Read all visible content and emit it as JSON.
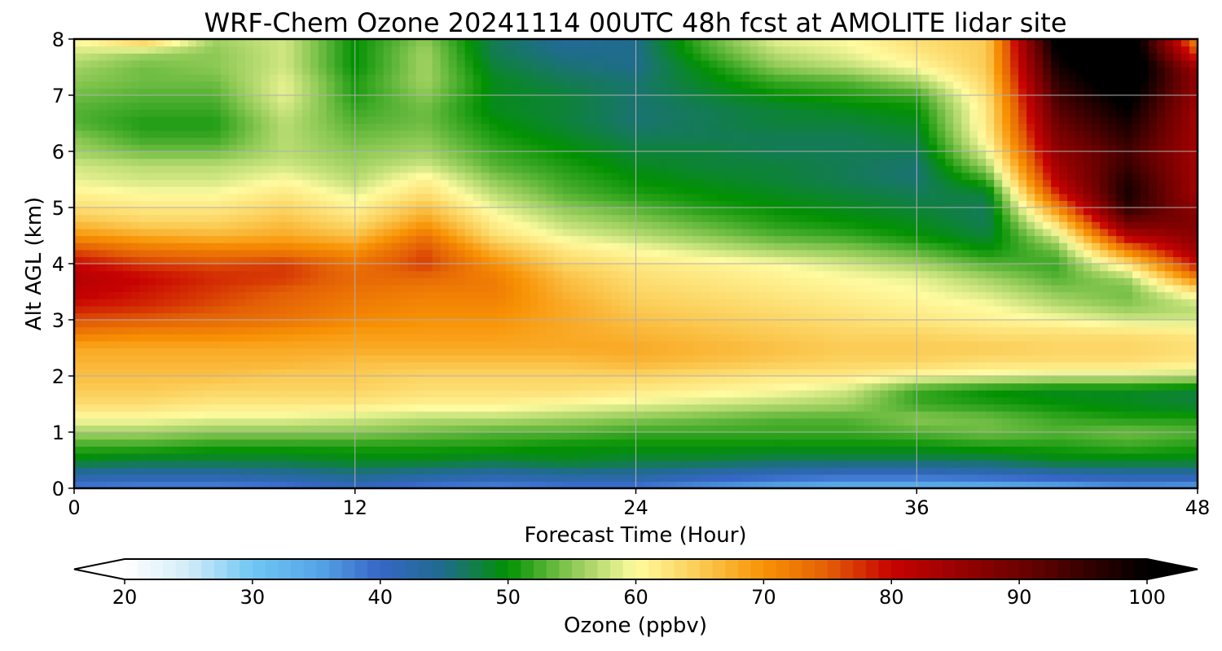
{
  "chart_data": {
    "type": "heatmap",
    "title": "WRF-Chem Ozone  20241114 00UTC 48h fcst at AMOLITE lidar site",
    "xlabel": "Forecast Time (Hour)",
    "ylabel": "Alt AGL (km)",
    "xlim": [
      0,
      48
    ],
    "ylim": [
      0,
      8
    ],
    "xticks": [
      "0",
      "12",
      "24",
      "36",
      "48"
    ],
    "yticks": [
      "0",
      "1",
      "2",
      "3",
      "4",
      "5",
      "6",
      "7",
      "8"
    ],
    "grid": true,
    "x": [
      0,
      3,
      6,
      9,
      12,
      15,
      18,
      21,
      24,
      27,
      30,
      33,
      36,
      39,
      42,
      45,
      48
    ],
    "y": [
      0,
      0.25,
      0.5,
      0.75,
      1,
      1.25,
      1.5,
      1.75,
      2,
      2.25,
      2.5,
      2.75,
      3,
      3.25,
      3.5,
      3.75,
      4,
      4.25,
      4.5,
      4.75,
      5,
      5.25,
      5.5,
      5.75,
      6,
      6.25,
      6.5,
      6.75,
      7,
      7.25,
      7.5,
      7.75,
      8
    ],
    "z": [
      [
        38,
        37,
        37,
        38,
        40,
        38,
        37,
        38,
        38,
        36,
        34,
        33,
        33,
        33,
        34,
        36,
        35
      ],
      [
        43,
        43,
        43,
        44,
        45,
        44,
        43,
        44,
        44,
        42,
        41,
        40,
        40,
        41,
        42,
        43,
        43
      ],
      [
        49,
        48,
        48,
        48,
        49,
        49,
        48,
        49,
        48,
        48,
        47,
        47,
        47,
        47,
        49,
        49,
        49
      ],
      [
        52,
        52,
        51,
        51,
        51,
        51,
        51,
        50,
        50,
        50,
        50,
        50,
        50,
        51,
        51,
        52,
        51
      ],
      [
        56,
        56,
        55,
        55,
        55,
        54,
        53,
        53,
        52,
        52,
        52,
        52,
        53,
        54,
        53,
        54,
        53
      ],
      [
        60,
        60,
        59,
        59,
        58,
        57,
        57,
        56,
        55,
        54,
        53,
        53,
        55,
        54,
        52,
        51,
        51
      ],
      [
        63,
        63,
        62,
        62,
        62,
        61,
        61,
        60,
        59,
        58,
        57,
        56,
        52,
        51,
        50,
        49,
        48
      ],
      [
        65,
        65,
        64,
        64,
        64,
        63,
        63,
        63,
        62,
        61,
        60,
        58,
        52,
        50,
        49,
        49,
        48
      ],
      [
        66,
        66,
        66,
        65,
        65,
        64,
        64,
        64,
        64,
        63,
        62,
        62,
        60,
        59,
        58,
        58,
        57
      ],
      [
        67,
        67,
        67,
        67,
        66,
        66,
        66,
        66,
        67,
        66,
        65,
        64,
        64,
        63,
        63,
        63,
        62
      ],
      [
        68,
        68,
        68,
        68,
        68,
        68,
        68,
        68,
        68,
        67,
        66,
        65,
        65,
        65,
        64,
        64,
        63
      ],
      [
        72,
        71,
        71,
        70,
        69,
        69,
        69,
        68,
        67,
        66,
        65,
        64,
        64,
        63,
        63,
        63,
        62
      ],
      [
        76,
        75,
        74,
        73,
        71,
        70,
        70,
        68,
        66,
        65,
        64,
        63,
        62,
        61,
        60,
        58,
        58
      ],
      [
        79,
        78,
        76,
        74,
        72,
        71,
        71,
        68,
        65,
        64,
        63,
        62,
        61,
        60,
        57,
        55,
        57
      ],
      [
        81,
        79,
        77,
        75,
        73,
        72,
        72,
        67,
        64,
        63,
        62,
        61,
        60,
        58,
        55,
        54,
        62
      ],
      [
        82,
        80,
        78,
        77,
        74,
        74,
        72,
        66,
        63,
        62,
        61,
        60,
        59,
        56,
        53,
        56,
        72
      ],
      [
        80,
        77,
        76,
        77,
        73,
        77,
        70,
        64,
        62,
        61,
        60,
        58,
        56,
        53,
        52,
        63,
        80
      ],
      [
        76,
        73,
        72,
        72,
        70,
        76,
        67,
        62,
        60,
        58,
        56,
        55,
        53,
        50,
        54,
        72,
        85
      ],
      [
        70,
        68,
        67,
        68,
        66,
        73,
        63,
        59,
        57,
        55,
        53,
        52,
        50,
        48,
        58,
        82,
        87
      ],
      [
        66,
        64,
        64,
        66,
        63,
        69,
        61,
        57,
        55,
        53,
        51,
        50,
        49,
        47,
        64,
        90,
        88
      ],
      [
        63,
        62,
        62,
        64,
        61,
        66,
        59,
        55,
        53,
        51,
        50,
        49,
        48,
        47,
        71,
        96,
        86
      ],
      [
        61,
        60,
        60,
        62,
        59,
        63,
        57,
        53,
        51,
        50,
        49,
        48,
        47,
        48,
        78,
        98,
        84
      ],
      [
        59,
        58,
        58,
        60,
        57,
        61,
        55,
        52,
        50,
        49,
        48,
        47,
        46,
        52,
        82,
        97,
        84
      ],
      [
        58,
        57,
        57,
        58,
        56,
        58,
        53,
        51,
        49,
        48,
        48,
        47,
        46,
        56,
        84,
        95,
        84
      ],
      [
        56,
        54,
        54,
        57,
        55,
        56,
        52,
        50,
        48,
        48,
        47,
        47,
        47,
        59,
        86,
        94,
        84
      ],
      [
        55,
        52,
        52,
        57,
        54,
        55,
        51,
        49,
        47,
        47,
        47,
        47,
        48,
        61,
        88,
        96,
        84
      ],
      [
        53,
        51,
        51,
        57,
        53,
        54,
        50,
        48,
        46,
        47,
        48,
        48,
        49,
        62,
        90,
        98,
        84
      ],
      [
        53,
        52,
        52,
        58,
        52,
        54,
        49,
        48,
        46,
        47,
        48,
        49,
        50,
        62,
        92,
        100,
        84
      ],
      [
        54,
        53,
        53,
        59,
        51,
        55,
        49,
        48,
        46,
        48,
        50,
        51,
        52,
        63,
        94,
        102,
        85
      ],
      [
        55,
        54,
        54,
        59,
        51,
        56,
        49,
        47,
        46,
        49,
        52,
        53,
        56,
        64,
        96,
        104,
        86
      ],
      [
        56,
        54,
        55,
        58,
        50,
        56,
        48,
        46,
        45,
        50,
        55,
        57,
        60,
        65,
        98,
        106,
        84
      ],
      [
        58,
        56,
        55,
        58,
        50,
        56,
        47,
        45,
        45,
        52,
        57,
        59,
        62,
        65,
        100,
        106,
        76
      ],
      [
        60,
        66,
        56,
        58,
        50,
        55,
        47,
        44,
        45,
        53,
        59,
        60,
        63,
        65,
        102,
        106,
        70
      ]
    ],
    "colorbar": {
      "label": "Ozone  (ppbv)",
      "min": 20,
      "max": 100,
      "ticks": [
        "20",
        "30",
        "40",
        "50",
        "60",
        "70",
        "80",
        "90",
        "100"
      ],
      "extend": "both",
      "stops": [
        [
          20,
          "#ffffff"
        ],
        [
          25,
          "#d2ecf8"
        ],
        [
          30,
          "#6fc7f4"
        ],
        [
          35,
          "#57a6e8"
        ],
        [
          40,
          "#3666c6"
        ],
        [
          45,
          "#1f6c8c"
        ],
        [
          50,
          "#029102"
        ],
        [
          55,
          "#8bc854"
        ],
        [
          60,
          "#fffba0"
        ],
        [
          65,
          "#fbcb54"
        ],
        [
          70,
          "#f89204"
        ],
        [
          75,
          "#e35f06"
        ],
        [
          80,
          "#c70202"
        ],
        [
          90,
          "#6e0101"
        ],
        [
          100,
          "#000000"
        ]
      ]
    }
  }
}
